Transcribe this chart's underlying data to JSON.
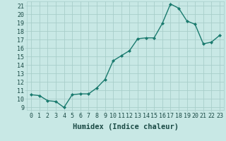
{
  "x": [
    0,
    1,
    2,
    3,
    4,
    5,
    6,
    7,
    8,
    9,
    10,
    11,
    12,
    13,
    14,
    15,
    16,
    17,
    18,
    19,
    20,
    21,
    22,
    23
  ],
  "y": [
    10.5,
    10.4,
    9.8,
    9.7,
    9.0,
    10.5,
    10.6,
    10.6,
    11.3,
    12.3,
    14.5,
    15.1,
    15.7,
    17.1,
    17.2,
    17.2,
    18.9,
    21.2,
    20.7,
    19.2,
    18.8,
    16.5,
    16.7,
    17.5
  ],
  "line_color": "#1a7a6e",
  "marker": "D",
  "marker_size": 2.0,
  "bg_color": "#c8e8e5",
  "grid_color": "#a8ceca",
  "xlabel": "Humidex (Indice chaleur)",
  "xlim": [
    -0.5,
    23.5
  ],
  "ylim": [
    8.7,
    21.5
  ],
  "yticks": [
    9,
    10,
    11,
    12,
    13,
    14,
    15,
    16,
    17,
    18,
    19,
    20,
    21
  ],
  "xticks": [
    0,
    1,
    2,
    3,
    4,
    5,
    6,
    7,
    8,
    9,
    10,
    11,
    12,
    13,
    14,
    15,
    16,
    17,
    18,
    19,
    20,
    21,
    22,
    23
  ],
  "tick_fontsize": 6.0,
  "xlabel_fontsize": 7.5,
  "linewidth": 1.0
}
